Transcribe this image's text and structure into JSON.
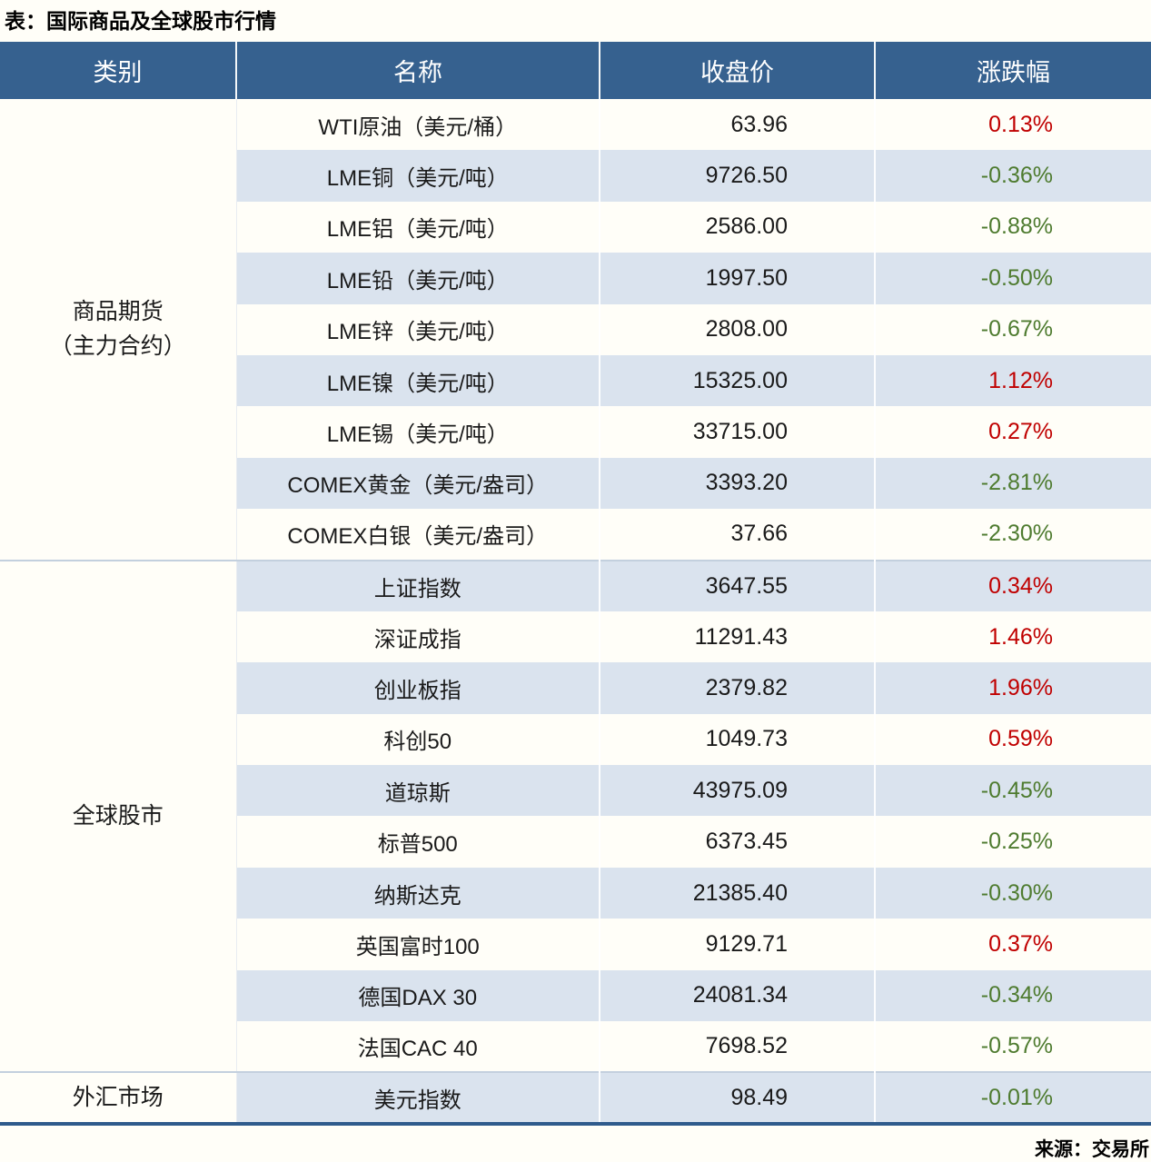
{
  "title": "表：国际商品及全球股市行情",
  "columns": [
    "类别",
    "名称",
    "收盘价",
    "涨跌幅"
  ],
  "groups": [
    {
      "category_lines": [
        "商品期货",
        "（主力合约）"
      ],
      "rows": [
        {
          "name": "WTI原油（美元/桶）",
          "close": "63.96",
          "change": "0.13%"
        },
        {
          "name": "LME铜（美元/吨）",
          "close": "9726.50",
          "change": "-0.36%"
        },
        {
          "name": "LME铝（美元/吨）",
          "close": "2586.00",
          "change": "-0.88%"
        },
        {
          "name": "LME铅（美元/吨）",
          "close": "1997.50",
          "change": "-0.50%"
        },
        {
          "name": "LME锌（美元/吨）",
          "close": "2808.00",
          "change": "-0.67%"
        },
        {
          "name": "LME镍（美元/吨）",
          "close": "15325.00",
          "change": "1.12%"
        },
        {
          "name": "LME锡（美元/吨）",
          "close": "33715.00",
          "change": "0.27%"
        },
        {
          "name": "COMEX黄金（美元/盎司）",
          "close": "3393.20",
          "change": "-2.81%"
        },
        {
          "name": "COMEX白银（美元/盎司）",
          "close": "37.66",
          "change": "-2.30%"
        }
      ]
    },
    {
      "category_lines": [
        "全球股市"
      ],
      "rows": [
        {
          "name": "上证指数",
          "close": "3647.55",
          "change": "0.34%"
        },
        {
          "name": "深证成指",
          "close": "11291.43",
          "change": "1.46%"
        },
        {
          "name": "创业板指",
          "close": "2379.82",
          "change": "1.96%"
        },
        {
          "name": "科创50",
          "close": "1049.73",
          "change": "0.59%"
        },
        {
          "name": "道琼斯",
          "close": "43975.09",
          "change": "-0.45%"
        },
        {
          "name": "标普500",
          "close": "6373.45",
          "change": "-0.25%"
        },
        {
          "name": "纳斯达克",
          "close": "21385.40",
          "change": "-0.30%"
        },
        {
          "name": "英国富时100",
          "close": "9129.71",
          "change": "0.37%"
        },
        {
          "name": "德国DAX 30",
          "close": "24081.34",
          "change": "-0.34%"
        },
        {
          "name": "法国CAC 40",
          "close": "7698.52",
          "change": "-0.57%"
        }
      ]
    },
    {
      "category_lines": [
        "外汇市场"
      ],
      "rows": [
        {
          "name": "美元指数",
          "close": "98.49",
          "change": "-0.01%"
        }
      ]
    }
  ],
  "source": "来源：交易所",
  "colors": {
    "header_bg": "#36618F",
    "band_bg": "#DAE3EE",
    "up_red": "#C00000",
    "down_green": "#4E7B2F",
    "bottom_border": "#2F5B8C",
    "group_separator": "#C3D0DE"
  }
}
